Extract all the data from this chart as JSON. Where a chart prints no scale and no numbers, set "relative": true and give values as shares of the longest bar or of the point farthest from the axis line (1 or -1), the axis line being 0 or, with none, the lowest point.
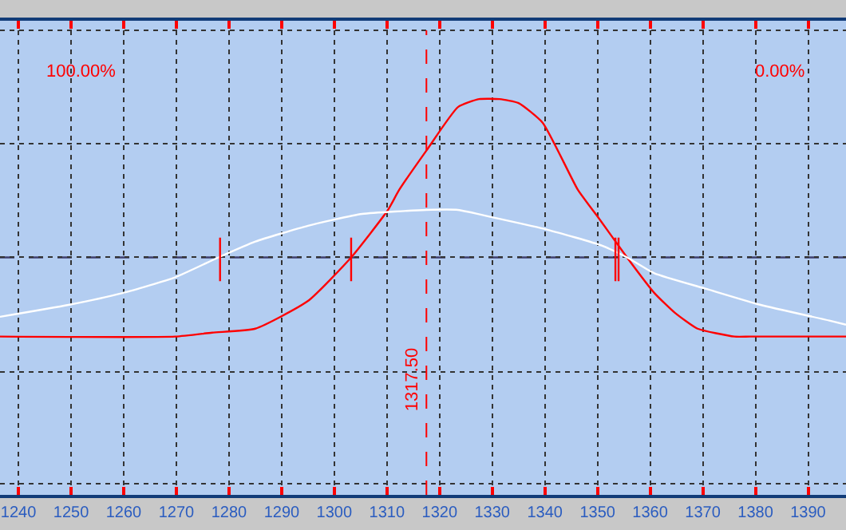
{
  "chart_data": {
    "type": "line",
    "relative": true,
    "xlim": [
      1236.5,
      1397.2
    ],
    "xticks": [
      1240,
      1250,
      1260,
      1270,
      1280,
      1290,
      1300,
      1310,
      1320,
      1330,
      1340,
      1350,
      1360,
      1370,
      1380,
      1390
    ],
    "grid": true,
    "marker": "none",
    "line_style": "solid",
    "series": [
      {
        "color": "#ff0000",
        "x": [
          1236.5,
          1269.8,
          1276.8,
          1285,
          1295,
          1303.2,
          1310.2,
          1312.3,
          1317.5,
          1323.5,
          1327.5,
          1331.4,
          1335,
          1339.6,
          1346.3,
          1350.2,
          1355.6,
          1360.8,
          1364.7,
          1369,
          1376,
          1379,
          1397.2
        ],
        "values": [
          0.4,
          0.4,
          0.41,
          0.42,
          0.49,
          0.6,
          0.72,
          0.77,
          0.87,
          0.98,
          1.0,
          1.0,
          0.99,
          0.94,
          0.77,
          0.7,
          0.6,
          0.51,
          0.46,
          0.42,
          0.4,
          0.4,
          0.4
        ]
      },
      {
        "color": "#ffffff",
        "x": [
          1236.5,
          1249.5,
          1259.8,
          1269.8,
          1278,
          1285,
          1295,
          1305.3,
          1317.5,
          1323.5,
          1330.5,
          1340.5,
          1350.8,
          1355.6,
          1360.8,
          1370.8,
          1381,
          1394.2,
          1397.2
        ],
        "values": [
          0.45,
          0.48,
          0.51,
          0.55,
          0.6,
          0.64,
          0.68,
          0.71,
          0.72,
          0.72,
          0.7,
          0.67,
          0.63,
          0.6,
          0.56,
          0.52,
          0.48,
          0.44,
          0.43
        ]
      },
      {
        "color": "#ff0000",
        "x": [
          1278.3,
          1278.3,
          null,
          1303.2,
          1303.2,
          null,
          1353.4,
          1353.4,
          null,
          1354.0,
          1354.0
        ],
        "values": [
          0.54,
          0.65,
          null,
          0.54,
          0.65,
          null,
          0.54,
          0.65,
          null,
          0.54,
          0.65
        ]
      }
    ],
    "ref_lines": [
      {
        "axis": "x",
        "value": 1317.5,
        "label": "1317.50",
        "color": "#ff0000",
        "line_style": "dashed"
      },
      {
        "axis": "y",
        "value": 0.6,
        "color": "#404070",
        "line_style": "dashed"
      }
    ],
    "annotations": [
      "100.00%",
      "0.00%"
    ]
  }
}
